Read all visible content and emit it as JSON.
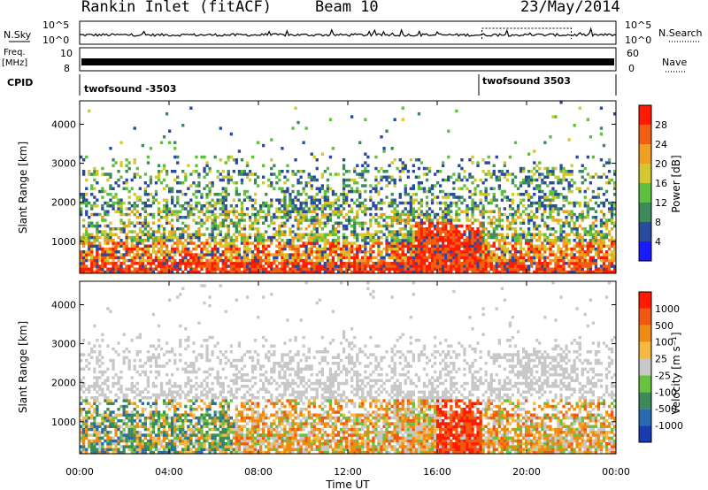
{
  "header": {
    "station": "Rankin Inlet (fitACF)",
    "beam": "Beam 10",
    "date": "23/May/2014"
  },
  "top_panels": {
    "nsky_label": "N.Sky",
    "nsearch_label": "N.Search",
    "noise_ticks": [
      "10^5",
      "10^0"
    ],
    "freq_label_1": "Freq.",
    "freq_label_2": "[MHz]",
    "freq_ticks": [
      "10",
      "8"
    ],
    "nave_label": "Nave",
    "nave_ticks": [
      "60",
      "0"
    ],
    "cpid_label": "CPID",
    "cpid_entries": [
      {
        "text": "twofsound -3503",
        "start_hour": 0
      },
      {
        "text": "twofsound 3503",
        "start_hour": 18
      }
    ]
  },
  "colors": {
    "power_scale": [
      "#1a1aff",
      "#2a4aa0",
      "#3d8a5c",
      "#5fbf3f",
      "#d4c830",
      "#f0a020",
      "#f06010",
      "#ff1a00"
    ],
    "velocity_scale": [
      "#1a3ab0",
      "#2a6ab0",
      "#3c8a58",
      "#6ac040",
      "#c8c8c8",
      "#f5b840",
      "#f08a10",
      "#f05a10",
      "#ff1a00"
    ]
  },
  "chart_data": [
    {
      "type": "heatmap",
      "name": "power",
      "xlabel": "",
      "ylabel": "Slant Range [km]",
      "xlim": [
        0,
        24
      ],
      "ylim": [
        180,
        4600
      ],
      "y_ticks": [
        1000,
        2000,
        3000,
        4000
      ],
      "colorbar_label": "Power [dB]",
      "colorbar_ticks": [
        "4",
        "8",
        "12",
        "16",
        "20",
        "24",
        "28"
      ]
    },
    {
      "type": "heatmap",
      "name": "velocity",
      "xlabel": "Time UT",
      "ylabel": "Slant Range [km]",
      "xlim": [
        0,
        24
      ],
      "ylim": [
        180,
        4600
      ],
      "y_ticks": [
        1000,
        2000,
        3000,
        4000
      ],
      "x_tick_labels": [
        "00:00",
        "04:00",
        "08:00",
        "12:00",
        "16:00",
        "20:00",
        "00:00"
      ],
      "colorbar_label": "Velocity [m s⁻¹]",
      "colorbar_ticks": [
        "1000",
        "500",
        "100",
        "25",
        "-25",
        "-100",
        "-500",
        "-1000"
      ]
    }
  ]
}
